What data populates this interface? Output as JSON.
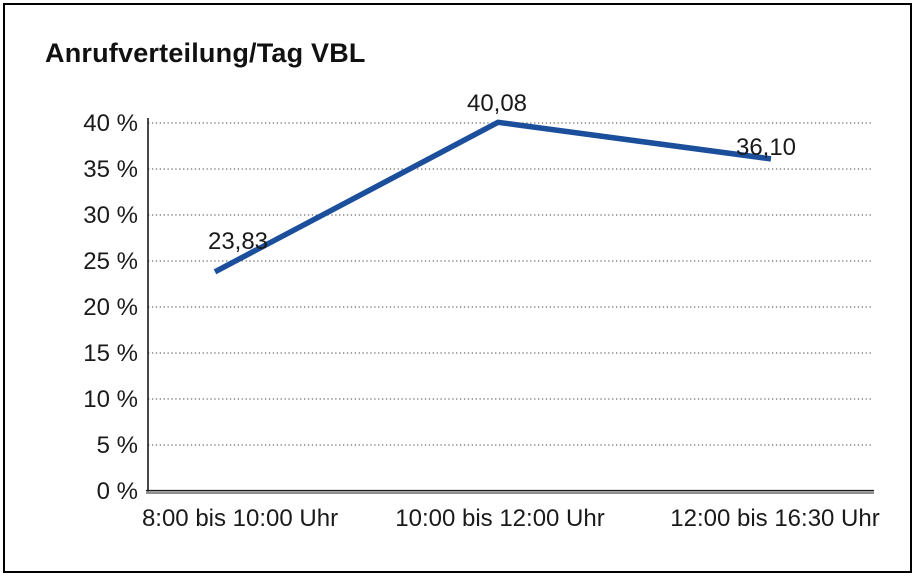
{
  "title": "Anrufverteilung/Tag VBL",
  "chart_data": {
    "type": "line",
    "title": "Anrufverteilung/Tag VBL",
    "categories": [
      "8:00 bis 10:00 Uhr",
      "10:00 bis 12:00 Uhr",
      "12:00 bis 16:30 Uhr"
    ],
    "values": [
      23.83,
      40.08,
      36.1
    ],
    "data_labels": [
      "23,83",
      "40,08",
      "36,10"
    ],
    "series_name": "Anrufverteilung",
    "xlabel": "",
    "ylabel": "",
    "ylim": [
      0,
      40
    ],
    "y_tick_step": 5,
    "y_ticks": [
      "0 %",
      "5 %",
      "10 %",
      "15 %",
      "20 %",
      "25 %",
      "30 %",
      "35 %",
      "40 %"
    ],
    "grid": "horizontal-dotted",
    "legend_position": "none",
    "line_color": "#1B4F9C"
  },
  "colors": {
    "line": "#1B4F9C",
    "text": "#1A1A1A",
    "gridline": "#6b6b6b",
    "axis_dark": "#1a1a1a",
    "axis_shadow": "#8f8f8f",
    "border": "#000000",
    "background": "#FFFFFF"
  }
}
